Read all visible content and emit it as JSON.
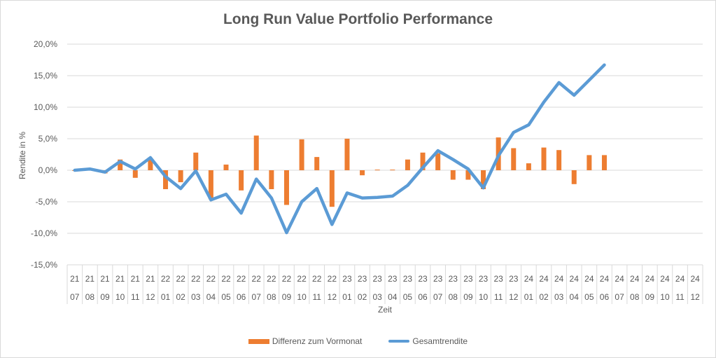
{
  "chart_data": {
    "type": "bar+line",
    "title": "Long Run Value Portfolio Performance",
    "xlabel": "Zeit",
    "ylabel": "Rendite in %",
    "ylim": [
      -15,
      20
    ],
    "yticks": [
      20,
      15,
      10,
      5,
      0,
      -5,
      -10,
      -15
    ],
    "ytick_labels": [
      "20,0%",
      "15,0%",
      "10,0%",
      "5,0%",
      "0,0%",
      "-5,0%",
      "-10,0%",
      "-15,0%"
    ],
    "grid": true,
    "legend_position": "bottom",
    "categories": [
      [
        "21",
        "07"
      ],
      [
        "21",
        "08"
      ],
      [
        "21",
        "09"
      ],
      [
        "21",
        "10"
      ],
      [
        "21",
        "11"
      ],
      [
        "21",
        "12"
      ],
      [
        "22",
        "01"
      ],
      [
        "22",
        "02"
      ],
      [
        "22",
        "03"
      ],
      [
        "22",
        "04"
      ],
      [
        "22",
        "05"
      ],
      [
        "22",
        "06"
      ],
      [
        "22",
        "07"
      ],
      [
        "22",
        "08"
      ],
      [
        "22",
        "09"
      ],
      [
        "22",
        "10"
      ],
      [
        "22",
        "11"
      ],
      [
        "22",
        "12"
      ],
      [
        "23",
        "01"
      ],
      [
        "23",
        "02"
      ],
      [
        "23",
        "03"
      ],
      [
        "23",
        "04"
      ],
      [
        "23",
        "05"
      ],
      [
        "23",
        "06"
      ],
      [
        "23",
        "07"
      ],
      [
        "23",
        "08"
      ],
      [
        "23",
        "09"
      ],
      [
        "23",
        "10"
      ],
      [
        "23",
        "11"
      ],
      [
        "23",
        "12"
      ],
      [
        "24",
        "01"
      ],
      [
        "24",
        "02"
      ],
      [
        "24",
        "03"
      ],
      [
        "24",
        "04"
      ],
      [
        "24",
        "05"
      ],
      [
        "24",
        "06"
      ],
      [
        "24",
        "07"
      ],
      [
        "24",
        "08"
      ],
      [
        "24",
        "09"
      ],
      [
        "24",
        "10"
      ],
      [
        "24",
        "11"
      ],
      [
        "24",
        "12"
      ]
    ],
    "series": [
      {
        "name": "Differenz zum Vormonat",
        "type": "bar",
        "color": "#ed7d31",
        "values": [
          0.0,
          0.2,
          -0.5,
          1.7,
          -1.2,
          1.8,
          -3.0,
          -1.9,
          2.8,
          -4.6,
          0.9,
          -3.2,
          5.5,
          -3.0,
          -5.5,
          4.9,
          2.1,
          -5.8,
          5.0,
          -0.8,
          0.1,
          0.1,
          1.7,
          2.8,
          2.7,
          -1.5,
          -1.5,
          -3.0,
          5.2,
          3.5,
          1.1,
          3.6,
          3.2,
          -2.2,
          2.4,
          2.4,
          null,
          null,
          null,
          null,
          null,
          null
        ]
      },
      {
        "name": "Gesamtrendite",
        "type": "line",
        "color": "#5b9bd5",
        "values": [
          0.0,
          0.2,
          -0.3,
          1.4,
          0.2,
          2.0,
          -1.0,
          -2.9,
          -0.1,
          -4.7,
          -3.8,
          -6.8,
          -1.4,
          -4.4,
          -9.9,
          -5.0,
          -2.9,
          -8.6,
          -3.6,
          -4.4,
          -4.3,
          -4.1,
          -2.4,
          0.4,
          3.1,
          1.7,
          0.2,
          -2.8,
          2.3,
          6.0,
          7.2,
          10.8,
          13.9,
          11.9,
          14.3,
          16.7,
          null,
          null,
          null,
          null,
          null,
          null
        ]
      }
    ]
  }
}
